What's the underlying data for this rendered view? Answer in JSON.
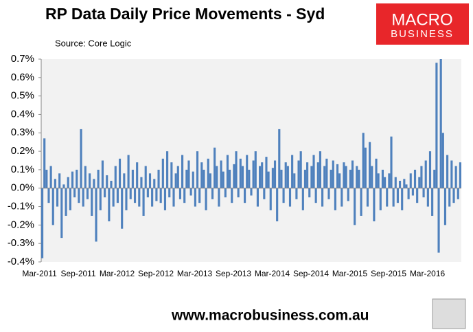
{
  "chart_data": {
    "type": "bar",
    "title": "RP Data Daily Price Movements - Syd",
    "subtitle": "Source: Core Logic",
    "logo": [
      "MACRO",
      "BUSINESS"
    ],
    "footer": "www.macrobusiness.com.au",
    "color": "#4f81bd",
    "ylim": [
      -0.4,
      0.7
    ],
    "yticks": [
      {
        "value": -0.4,
        "label": "-0.4%"
      },
      {
        "value": -0.3,
        "label": "-0.3%"
      },
      {
        "value": -0.2,
        "label": "-0.2%"
      },
      {
        "value": -0.1,
        "label": "-0.1%"
      },
      {
        "value": 0,
        "label": "0.0%"
      },
      {
        "value": 0.1,
        "label": "0.1%"
      },
      {
        "value": 0.2,
        "label": "0.2%"
      },
      {
        "value": 0.3,
        "label": "0.3%"
      },
      {
        "value": 0.4,
        "label": "0.4%"
      },
      {
        "value": 0.5,
        "label": "0.5%"
      },
      {
        "value": 0.6,
        "label": "0.6%"
      },
      {
        "value": 0.7,
        "label": "0.7%"
      }
    ],
    "categories": [
      "Mar-2011",
      null,
      null,
      null,
      null,
      null,
      null,
      null,
      null,
      null,
      null,
      null,
      null,
      null,
      null,
      null,
      null,
      null,
      "Sep-2011",
      null,
      null,
      null,
      null,
      null,
      null,
      null,
      null,
      null,
      null,
      null,
      null,
      null,
      null,
      null,
      null,
      null,
      "Mar-2012",
      null,
      null,
      null,
      null,
      null,
      null,
      null,
      null,
      null,
      null,
      null,
      null,
      null,
      null,
      null,
      null,
      null,
      "Sep-2012",
      null,
      null,
      null,
      null,
      null,
      null,
      null,
      null,
      null,
      null,
      null,
      null,
      null,
      null,
      null,
      null,
      null,
      "Mar-2013",
      null,
      null,
      null,
      null,
      null,
      null,
      null,
      null,
      null,
      null,
      null,
      null,
      null,
      null,
      null,
      null,
      null,
      "Sep-2013",
      null,
      null,
      null,
      null,
      null,
      null,
      null,
      null,
      null,
      null,
      null,
      null,
      null,
      null,
      null,
      null,
      null,
      "Mar-2014",
      null,
      null,
      null,
      null,
      null,
      null,
      null,
      null,
      null,
      null,
      null,
      null,
      null,
      null,
      null,
      null,
      null,
      "Sep-2014",
      null,
      null,
      null,
      null,
      null,
      null,
      null,
      null,
      null,
      null,
      null,
      null,
      null,
      null,
      null,
      null,
      null,
      "Mar-2015",
      null,
      null,
      null,
      null,
      null,
      null,
      null,
      null,
      null,
      null,
      null,
      null,
      null,
      null,
      null,
      null,
      null,
      "Sep-2015",
      null,
      null,
      null,
      null,
      null,
      null,
      null,
      null,
      null,
      null,
      null,
      null,
      null,
      null,
      null,
      null,
      null,
      "Mar-2016",
      null,
      null,
      null,
      null,
      null,
      null,
      null,
      null,
      null,
      null,
      null,
      null,
      null,
      null
    ],
    "values": [
      -0.38,
      0.27,
      0.1,
      -0.08,
      0.12,
      -0.2,
      0.05,
      -0.1,
      0.08,
      -0.27,
      0.02,
      -0.15,
      0.06,
      -0.12,
      0.09,
      -0.05,
      0.1,
      -0.08,
      0.32,
      -0.1,
      0.12,
      -0.06,
      0.08,
      -0.15,
      0.05,
      -0.29,
      0.1,
      -0.12,
      0.15,
      -0.05,
      0.07,
      -0.18,
      0.04,
      -0.1,
      0.12,
      -0.08,
      0.16,
      -0.22,
      0.08,
      -0.12,
      0.18,
      -0.06,
      0.1,
      -0.08,
      0.14,
      -0.1,
      0.06,
      -0.15,
      0.12,
      -0.05,
      0.08,
      -0.1,
      0.05,
      -0.07,
      0.1,
      -0.08,
      0.16,
      -0.12,
      0.2,
      -0.05,
      0.14,
      -0.1,
      0.08,
      0.12,
      -0.06,
      0.18,
      -0.08,
      0.1,
      0.15,
      -0.04,
      0.09,
      -0.1,
      0.2,
      -0.08,
      0.14,
      0.1,
      -0.12,
      0.16,
      0.08,
      -0.06,
      0.22,
      0.12,
      -0.1,
      0.15,
      0.09,
      -0.05,
      0.18,
      0.1,
      -0.08,
      0.13,
      0.2,
      -0.05,
      0.16,
      0.12,
      -0.08,
      0.18,
      0.1,
      -0.04,
      0.15,
      0.2,
      -0.1,
      0.12,
      0.14,
      -0.06,
      0.17,
      0.09,
      -0.12,
      0.11,
      0.15,
      -0.18,
      0.32,
      0.1,
      -0.08,
      0.14,
      0.12,
      -0.1,
      0.18,
      0.08,
      -0.06,
      0.15,
      0.2,
      -0.12,
      0.1,
      0.14,
      -0.05,
      0.12,
      0.18,
      -0.08,
      0.14,
      0.2,
      -0.1,
      0.12,
      0.16,
      -0.06,
      0.1,
      0.15,
      -0.12,
      0.13,
      0.08,
      -0.1,
      0.14,
      0.12,
      -0.07,
      0.1,
      0.15,
      -0.2,
      0.12,
      0.1,
      -0.15,
      0.3,
      0.22,
      -0.1,
      0.25,
      0.12,
      -0.18,
      0.16,
      0.08,
      -0.12,
      0.1,
      0.06,
      -0.1,
      0.08,
      0.28,
      -0.1,
      0.06,
      -0.08,
      0.04,
      -0.12,
      0.05,
      0.02,
      -0.06,
      0.08,
      -0.04,
      0.1,
      -0.08,
      0.06,
      0.12,
      -0.05,
      0.15,
      -0.1,
      0.2,
      -0.15,
      0.1,
      0.68,
      -0.35,
      0.7,
      0.3,
      -0.2,
      0.18,
      -0.1,
      0.15,
      -0.08,
      0.12,
      -0.06,
      0.14
    ]
  }
}
